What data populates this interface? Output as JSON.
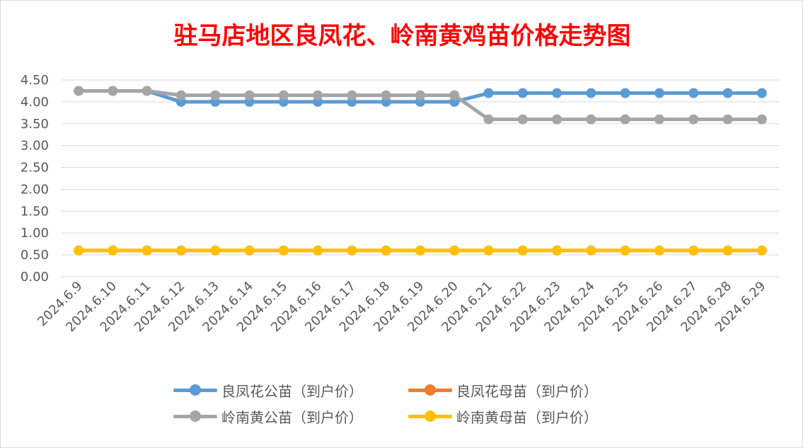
{
  "chart_data": {
    "type": "line",
    "title": "驻马店地区良凤花、岭南黄鸡苗价格走势图",
    "title_color": "#ff0000",
    "xlabel": "",
    "ylabel": "",
    "categories": [
      "2024.6.9",
      "2024.6.10",
      "2024.6.11",
      "2024.6.12",
      "2024.6.13",
      "2024.6.14",
      "2024.6.15",
      "2024.6.16",
      "2024.6.17",
      "2024.6.18",
      "2024.6.19",
      "2024.6.20",
      "2024.6.21",
      "2024.6.22",
      "2024.6.23",
      "2024.6.24",
      "2024.6.25",
      "2024.6.26",
      "2024.6.27",
      "2024.6.28",
      "2024.6.29"
    ],
    "ylim": [
      0,
      4.5
    ],
    "yticks": [
      "0.00",
      "0.50",
      "1.00",
      "1.50",
      "2.00",
      "2.50",
      "3.00",
      "3.50",
      "4.00",
      "4.50"
    ],
    "grid": true,
    "legend_position": "bottom",
    "series": [
      {
        "name": "良凤花公苗（到户价）",
        "color": "#5b9bd5",
        "values": [
          4.25,
          4.25,
          4.25,
          4.0,
          4.0,
          4.0,
          4.0,
          4.0,
          4.0,
          4.0,
          4.0,
          4.0,
          4.2,
          4.2,
          4.2,
          4.2,
          4.2,
          4.2,
          4.2,
          4.2,
          4.2
        ]
      },
      {
        "name": "良凤花母苗（到户价）",
        "color": "#ed7d31",
        "values": [
          0.6,
          0.6,
          0.6,
          0.6,
          0.6,
          0.6,
          0.6,
          0.6,
          0.6,
          0.6,
          0.6,
          0.6,
          0.6,
          0.6,
          0.6,
          0.6,
          0.6,
          0.6,
          0.6,
          0.6,
          0.6
        ]
      },
      {
        "name": "岭南黄公苗（到户价）",
        "color": "#a5a5a5",
        "values": [
          4.25,
          4.25,
          4.25,
          4.15,
          4.15,
          4.15,
          4.15,
          4.15,
          4.15,
          4.15,
          4.15,
          4.15,
          3.6,
          3.6,
          3.6,
          3.6,
          3.6,
          3.6,
          3.6,
          3.6,
          3.6
        ]
      },
      {
        "name": "岭南黄母苗（到户价）",
        "color": "#ffc000",
        "values": [
          0.6,
          0.6,
          0.6,
          0.6,
          0.6,
          0.6,
          0.6,
          0.6,
          0.6,
          0.6,
          0.6,
          0.6,
          0.6,
          0.6,
          0.6,
          0.6,
          0.6,
          0.6,
          0.6,
          0.6,
          0.6
        ]
      }
    ]
  }
}
